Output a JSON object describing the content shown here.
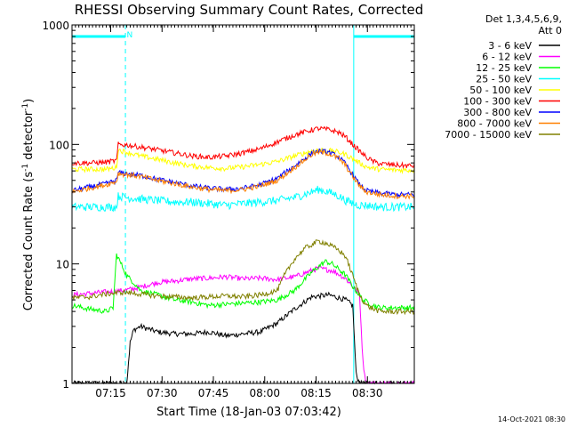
{
  "chart_data": {
    "type": "line",
    "title": "RHESSI Observing Summary Count Rates, Corrected",
    "xlabel": "Start Time (18-Jan-03 07:03:42)",
    "ylabel_main": "Corrected Count Rate (s",
    "ylabel_sup1": "-1",
    "ylabel_mid": " detector",
    "ylabel_sup2": "-1",
    "ylabel_end": ")",
    "yscale": "log",
    "ylim": [
      1,
      1000
    ],
    "xlim_minutes": [
      0,
      100
    ],
    "x_ticks": [
      {
        "label": "07:15",
        "min": 11.3
      },
      {
        "label": "07:30",
        "min": 26.3
      },
      {
        "label": "07:45",
        "min": 41.3
      },
      {
        "label": "08:00",
        "min": 56.3
      },
      {
        "label": "08:15",
        "min": 71.3
      },
      {
        "label": "08:30",
        "min": 86.3
      }
    ],
    "y_ticks": [
      {
        "label": "1",
        "value": 1
      },
      {
        "label": "10",
        "value": 10
      },
      {
        "label": "100",
        "value": 100
      },
      {
        "label": "1000",
        "value": 1000
      }
    ],
    "legend_header": [
      "Det 1,3,4,5,6,9,",
      "Att 0"
    ],
    "legend_placement": "top-right",
    "series": [
      {
        "name": "3 - 6 keV",
        "color": "#000000",
        "x": [
          0,
          16,
          16.5,
          17,
          18,
          20,
          25,
          30,
          35,
          40,
          45,
          50,
          55,
          60,
          65,
          70,
          75,
          78,
          80,
          82,
          83,
          84,
          85,
          86,
          100
        ],
        "y": [
          1,
          1,
          1.5,
          2.2,
          2.8,
          3.0,
          2.7,
          2.6,
          2.6,
          2.7,
          2.5,
          2.6,
          2.7,
          3.2,
          4.2,
          5.3,
          5.5,
          5.2,
          5.0,
          4.5,
          1.2,
          1,
          1,
          1,
          1
        ]
      },
      {
        "name": "6 - 12 keV",
        "color": "#ff00ff",
        "x": [
          0,
          15,
          18,
          20,
          25,
          30,
          35,
          40,
          45,
          50,
          55,
          60,
          65,
          70,
          72,
          74,
          76,
          78,
          80,
          82,
          84,
          85,
          86,
          100
        ],
        "y": [
          5.5,
          6.0,
          6.2,
          6.4,
          7.0,
          7.2,
          7.5,
          7.6,
          7.8,
          7.5,
          7.6,
          7.4,
          7.8,
          8.8,
          9.2,
          9.0,
          8.8,
          8.2,
          7.5,
          6.5,
          5.5,
          1.5,
          1,
          1
        ]
      },
      {
        "name": "12 - 25 keV",
        "color": "#00ff00",
        "x": [
          0,
          5,
          10,
          12,
          13,
          14,
          16,
          18,
          20,
          25,
          30,
          35,
          40,
          45,
          50,
          55,
          60,
          65,
          70,
          72,
          74,
          76,
          78,
          80,
          82,
          85,
          88,
          90,
          100
        ],
        "y": [
          4.5,
          4.2,
          4.0,
          4.3,
          12.0,
          10.5,
          8.0,
          7.0,
          6.0,
          5.5,
          5.0,
          4.8,
          4.5,
          4.6,
          4.7,
          4.8,
          5.0,
          6.0,
          8.5,
          9.5,
          10.5,
          10.0,
          9.0,
          8.0,
          6.5,
          5.0,
          4.5,
          4.3,
          4.3
        ]
      },
      {
        "name": "25 - 50 keV",
        "color": "#00ffff",
        "x": [
          0,
          5,
          10,
          13,
          13.5,
          16,
          20,
          25,
          30,
          35,
          40,
          45,
          50,
          55,
          60,
          65,
          70,
          72,
          75,
          78,
          80,
          82,
          84,
          86,
          90,
          95,
          100
        ],
        "y": [
          30,
          30,
          30,
          30,
          37,
          36,
          35,
          34,
          33,
          33,
          32,
          31,
          32,
          33,
          34,
          36,
          40,
          42,
          40,
          37,
          34,
          32,
          31,
          31,
          30,
          30,
          30
        ],
        "noise": 0.08
      },
      {
        "name": "50 - 100 keV",
        "color": "#ffff00",
        "x": [
          0,
          5,
          10,
          13,
          13.5,
          16,
          20,
          25,
          30,
          35,
          40,
          45,
          50,
          55,
          60,
          65,
          70,
          72,
          75,
          78,
          80,
          82,
          84,
          86,
          88,
          90,
          95,
          100
        ],
        "y": [
          62,
          62,
          62,
          64,
          90,
          86,
          80,
          75,
          70,
          66,
          64,
          63,
          65,
          68,
          72,
          80,
          88,
          90,
          89,
          86,
          82,
          76,
          70,
          65,
          63,
          62,
          61,
          61
        ]
      },
      {
        "name": "100 - 300 keV",
        "color": "#ff0000",
        "x": [
          0,
          5,
          10,
          13,
          13.5,
          16,
          20,
          25,
          30,
          35,
          40,
          45,
          50,
          55,
          60,
          65,
          70,
          72,
          75,
          78,
          80,
          82,
          84,
          86,
          88,
          90,
          95,
          100
        ],
        "y": [
          70,
          70,
          71,
          73,
          100,
          99,
          95,
          90,
          85,
          80,
          78,
          80,
          85,
          92,
          105,
          120,
          132,
          136,
          133,
          126,
          115,
          100,
          88,
          78,
          72,
          69,
          67,
          66
        ]
      },
      {
        "name": "300 - 800 keV",
        "color": "#0000ff",
        "x": [
          0,
          5,
          10,
          13,
          13.5,
          16,
          20,
          25,
          30,
          35,
          40,
          45,
          50,
          55,
          60,
          65,
          70,
          72,
          75,
          78,
          80,
          82,
          84,
          86,
          88,
          90,
          95,
          100
        ],
        "y": [
          41,
          44,
          47,
          50,
          58,
          57,
          55,
          51,
          48,
          45,
          43,
          42,
          43,
          46,
          52,
          66,
          84,
          88,
          86,
          78,
          68,
          56,
          46,
          41,
          40,
          39,
          38,
          38
        ]
      },
      {
        "name": "800 - 7000 keV",
        "color": "#ff8000",
        "x": [
          0,
          5,
          10,
          13,
          13.5,
          16,
          20,
          25,
          30,
          35,
          40,
          45,
          50,
          55,
          60,
          65,
          70,
          72,
          75,
          78,
          80,
          82,
          84,
          86,
          88,
          90,
          95,
          100
        ],
        "y": [
          40,
          43,
          46,
          49,
          57,
          56,
          54,
          50,
          47,
          44,
          42,
          41,
          42,
          45,
          50,
          64,
          82,
          86,
          84,
          76,
          66,
          54,
          45,
          40,
          39,
          38,
          37,
          37
        ]
      },
      {
        "name": "7000 - 15000 keV",
        "color": "#808000",
        "x": [
          0,
          5,
          10,
          15,
          20,
          25,
          30,
          35,
          40,
          45,
          50,
          55,
          60,
          62,
          65,
          68,
          70,
          72,
          74,
          76,
          78,
          80,
          82,
          84,
          86,
          88,
          90,
          100
        ],
        "y": [
          5.2,
          5.3,
          5.6,
          5.8,
          5.6,
          5.4,
          5.3,
          5.2,
          5.3,
          5.4,
          5.3,
          5.5,
          6.0,
          8.0,
          11.0,
          13.5,
          14.5,
          15.5,
          15.0,
          14.0,
          13.0,
          11.5,
          8.0,
          5.5,
          4.5,
          4.2,
          4.0,
          4.0
        ]
      }
    ],
    "annotations": [
      {
        "text": "N",
        "min": 17.0
      },
      {
        "bars": [
          [
            0,
            15.6
          ],
          [
            82.3,
            100
          ]
        ],
        "value": 800,
        "color": "#00ffff"
      },
      {
        "dashed_vlines_min": [
          15.6,
          100
        ],
        "color": "#00ffff"
      },
      {
        "solid_vlines_min": [
          0,
          82.3
        ],
        "color": "#00ffff"
      }
    ]
  },
  "footer": {
    "timestamp": "14-Oct-2021 08:30"
  }
}
